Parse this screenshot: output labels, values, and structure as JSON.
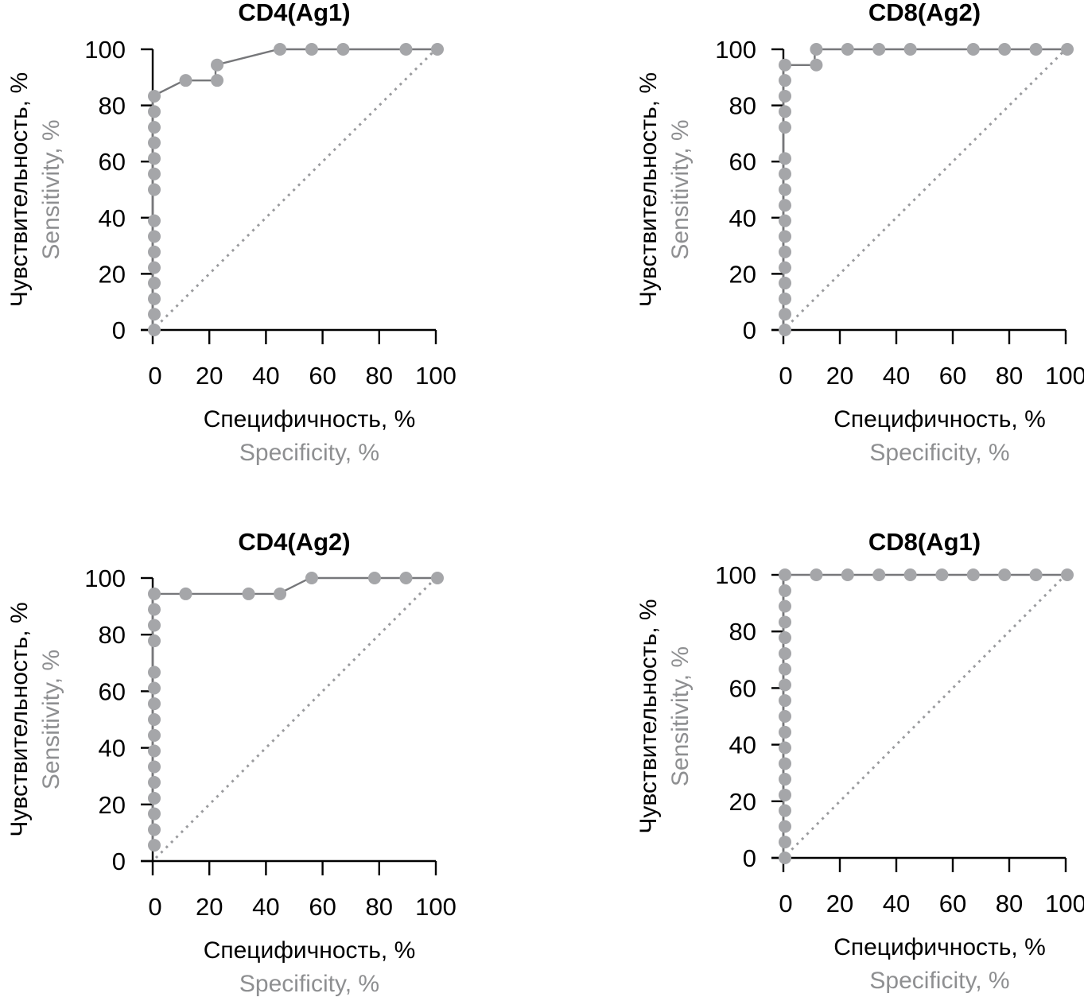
{
  "chart_data": [
    {
      "type": "line",
      "id": "cd4-ag1",
      "title": "CD4(Ag1)",
      "xlabel": "Специфичность, %",
      "xlabel_en": "Specificity, %",
      "ylabel": "Чувствительность, %",
      "ylabel_en": "Sensitivity, %",
      "xlim": [
        0,
        100
      ],
      "ylim": [
        0,
        100
      ],
      "xticks": [
        0,
        20,
        40,
        60,
        80,
        100
      ],
      "yticks": [
        0,
        20,
        40,
        60,
        80,
        100
      ],
      "grid": false,
      "reference_line": {
        "style": "dotted",
        "from": [
          0,
          0
        ],
        "to": [
          100,
          100
        ]
      },
      "points": [
        [
          0,
          0
        ],
        [
          0,
          5.6
        ],
        [
          0,
          11.1
        ],
        [
          0,
          16.7
        ],
        [
          0,
          22.2
        ],
        [
          0,
          27.8
        ],
        [
          0,
          33.3
        ],
        [
          0,
          38.9
        ],
        [
          0,
          50.0
        ],
        [
          0,
          55.6
        ],
        [
          0,
          61.1
        ],
        [
          0,
          66.7
        ],
        [
          0,
          72.2
        ],
        [
          0,
          77.8
        ],
        [
          0,
          83.3
        ],
        [
          11.1,
          88.9
        ],
        [
          22.2,
          88.9
        ],
        [
          22.2,
          94.4
        ],
        [
          44.4,
          100
        ],
        [
          55.6,
          100
        ],
        [
          66.7,
          100
        ],
        [
          88.9,
          100
        ],
        [
          100,
          100
        ]
      ]
    },
    {
      "type": "line",
      "id": "cd8-ag2",
      "title": "CD8(Ag2)",
      "xlabel": "Специфичность, %",
      "xlabel_en": "Specificity, %",
      "ylabel": "Чувствительность, %",
      "ylabel_en": "Sensitivity, %",
      "xlim": [
        0,
        100
      ],
      "ylim": [
        0,
        100
      ],
      "xticks": [
        0,
        20,
        40,
        60,
        80,
        100
      ],
      "yticks": [
        0,
        20,
        40,
        60,
        80,
        100
      ],
      "grid": false,
      "reference_line": {
        "style": "dotted",
        "from": [
          0,
          0
        ],
        "to": [
          100,
          100
        ]
      },
      "points": [
        [
          0,
          0
        ],
        [
          0,
          5.6
        ],
        [
          0,
          11.1
        ],
        [
          0,
          16.7
        ],
        [
          0,
          22.2
        ],
        [
          0,
          27.8
        ],
        [
          0,
          33.3
        ],
        [
          0,
          38.9
        ],
        [
          0,
          44.4
        ],
        [
          0,
          50.0
        ],
        [
          0,
          55.6
        ],
        [
          0,
          61.1
        ],
        [
          0,
          72.2
        ],
        [
          0,
          77.8
        ],
        [
          0,
          83.3
        ],
        [
          0,
          88.9
        ],
        [
          0,
          94.4
        ],
        [
          11.1,
          94.4
        ],
        [
          11.1,
          100
        ],
        [
          22.2,
          100
        ],
        [
          33.3,
          100
        ],
        [
          44.4,
          100
        ],
        [
          66.7,
          100
        ],
        [
          77.8,
          100
        ],
        [
          88.9,
          100
        ],
        [
          100,
          100
        ]
      ]
    },
    {
      "type": "line",
      "id": "cd4-ag2",
      "title": "CD4(Ag2)",
      "xlabel": "Специфичность, %",
      "xlabel_en": "Specificity, %",
      "ylabel": "Чувствительность, %",
      "ylabel_en": "Sensitivity, %",
      "xlim": [
        0,
        100
      ],
      "ylim": [
        0,
        100
      ],
      "xticks": [
        0,
        20,
        40,
        60,
        80,
        100
      ],
      "yticks": [
        0,
        20,
        40,
        60,
        80,
        100
      ],
      "grid": false,
      "reference_line": {
        "style": "dotted",
        "from": [
          0,
          0
        ],
        "to": [
          100,
          100
        ]
      },
      "points": [
        [
          0,
          5.6
        ],
        [
          0,
          11.1
        ],
        [
          0,
          16.7
        ],
        [
          0,
          22.2
        ],
        [
          0,
          27.8
        ],
        [
          0,
          33.3
        ],
        [
          0,
          38.9
        ],
        [
          0,
          44.4
        ],
        [
          0,
          50.0
        ],
        [
          0,
          55.6
        ],
        [
          0,
          61.1
        ],
        [
          0,
          66.7
        ],
        [
          0,
          77.8
        ],
        [
          0,
          83.3
        ],
        [
          0,
          88.9
        ],
        [
          0,
          94.4
        ],
        [
          11.1,
          94.4
        ],
        [
          33.3,
          94.4
        ],
        [
          44.4,
          94.4
        ],
        [
          55.6,
          100
        ],
        [
          77.8,
          100
        ],
        [
          88.9,
          100
        ],
        [
          100,
          100
        ]
      ]
    },
    {
      "type": "line",
      "id": "cd8-ag1",
      "title": "CD8(Ag1)",
      "xlabel": "Специфичность, %",
      "xlabel_en": "Specificity, %",
      "ylabel": "Чувствительность, %",
      "ylabel_en": "Sensitivity, %",
      "xlim": [
        0,
        100
      ],
      "ylim": [
        0,
        100
      ],
      "xticks": [
        0,
        20,
        40,
        60,
        80,
        100
      ],
      "yticks": [
        0,
        20,
        40,
        60,
        80,
        100
      ],
      "grid": false,
      "reference_line": {
        "style": "dotted",
        "from": [
          0,
          0
        ],
        "to": [
          100,
          100
        ]
      },
      "points": [
        [
          0,
          0
        ],
        [
          0,
          5.6
        ],
        [
          0,
          11.1
        ],
        [
          0,
          16.7
        ],
        [
          0,
          22.2
        ],
        [
          0,
          27.8
        ],
        [
          0,
          33.3
        ],
        [
          0,
          38.9
        ],
        [
          0,
          44.4
        ],
        [
          0,
          50.0
        ],
        [
          0,
          55.6
        ],
        [
          0,
          61.1
        ],
        [
          0,
          66.7
        ],
        [
          0,
          72.2
        ],
        [
          0,
          77.8
        ],
        [
          0,
          83.3
        ],
        [
          0,
          88.9
        ],
        [
          0,
          94.4
        ],
        [
          0,
          100
        ],
        [
          11.1,
          100
        ],
        [
          22.2,
          100
        ],
        [
          33.3,
          100
        ],
        [
          44.4,
          100
        ],
        [
          55.6,
          100
        ],
        [
          66.7,
          100
        ],
        [
          77.8,
          100
        ],
        [
          88.9,
          100
        ],
        [
          100,
          100
        ]
      ]
    }
  ],
  "colors": {
    "points": "#a5a6a9",
    "roc_line": "#76777a",
    "reference_line": "#9a9b9e",
    "axis": "#000000",
    "english_label": "#8e8f91"
  }
}
